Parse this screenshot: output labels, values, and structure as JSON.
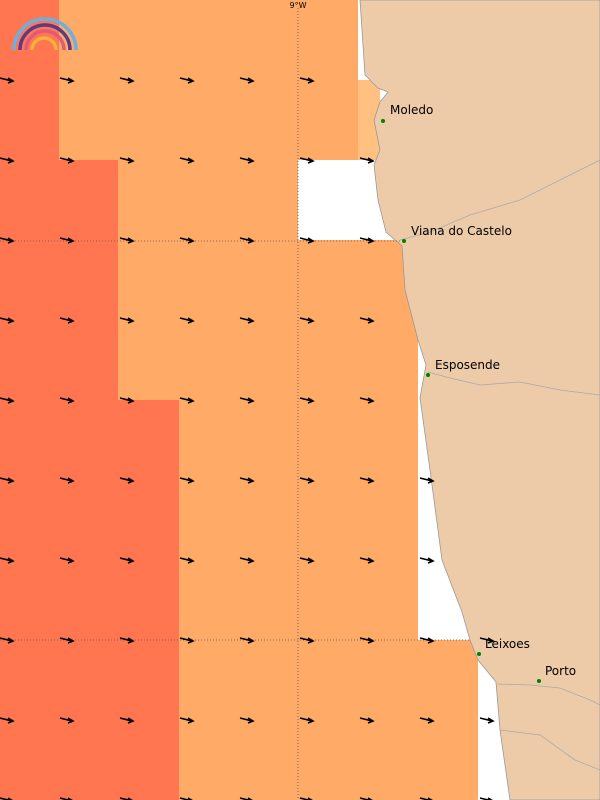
{
  "map": {
    "meridian_label": "9°W",
    "places": [
      {
        "label": "Moledo"
      },
      {
        "label": "Viana do Castelo"
      },
      {
        "label": "Esposende"
      },
      {
        "label": "Leixoes"
      },
      {
        "label": "Porto"
      }
    ]
  }
}
